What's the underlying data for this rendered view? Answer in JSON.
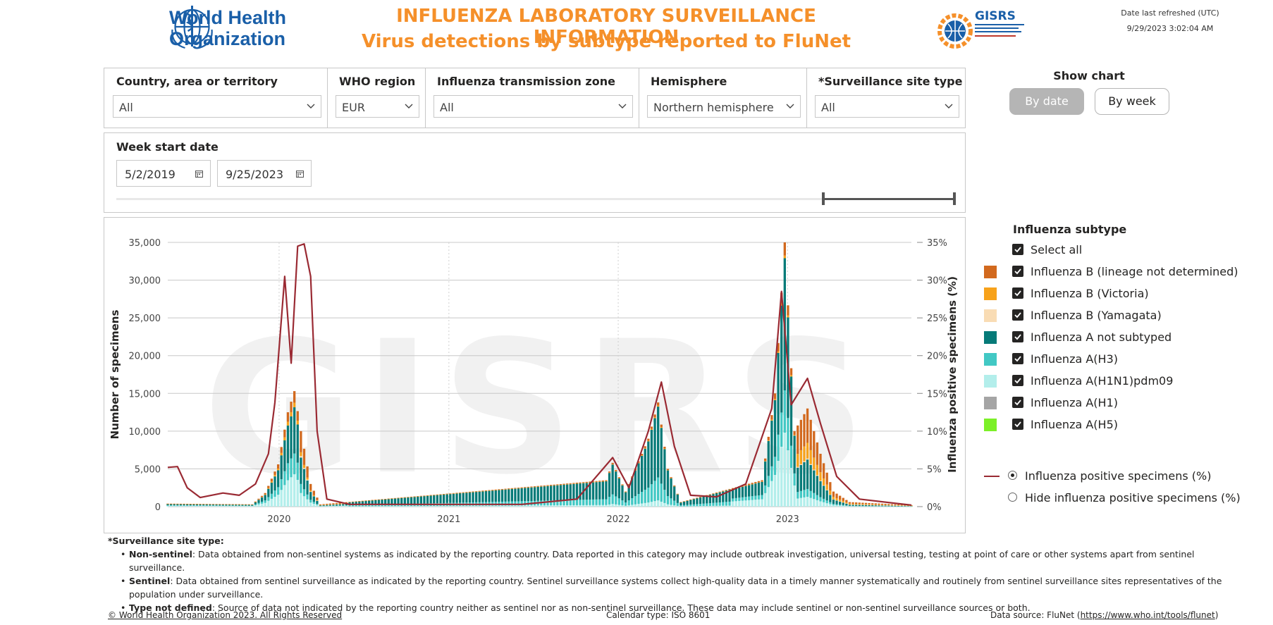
{
  "header": {
    "org_name_line1": "World Health",
    "org_name_line2": "Organization",
    "title": "INFLUENZA LABORATORY SURVEILLANCE INFORMATION",
    "subtitle": "Virus detections by subtype reported to FluNet",
    "gisrs_logo_text": "GISRS",
    "refreshed_label": "Date last refreshed (UTC)",
    "refreshed_value": "9/29/2023 3:02:04 AM"
  },
  "filters": [
    {
      "label": "Country, area or territory",
      "value": "All"
    },
    {
      "label": "WHO region",
      "value": "EUR"
    },
    {
      "label": "Influenza transmission zone",
      "value": "All"
    },
    {
      "label": "Hemisphere",
      "value": "Northern hemisphere"
    },
    {
      "label": "*Surveillance site type",
      "value": "All"
    }
  ],
  "date_filter": {
    "label": "Week start date",
    "start": "5/2/2019",
    "end": "9/25/2023",
    "range_selected": [
      0.878,
      1.0
    ]
  },
  "show_chart": {
    "title": "Show chart",
    "by_date": "By date",
    "by_week": "By week",
    "active": "By date"
  },
  "legend": {
    "title": "Influenza subtype",
    "select_all": "Select all",
    "items": [
      {
        "label": "Influenza B (lineage not determined)",
        "color": "#d2691e",
        "checked": true
      },
      {
        "label": "Influenza B (Victoria)",
        "color": "#f7a21b",
        "checked": true
      },
      {
        "label": "Influenza B (Yamagata)",
        "color": "#f9dcb4",
        "checked": true
      },
      {
        "label": "Influenza A not subtyped",
        "color": "#067a78",
        "checked": true
      },
      {
        "label": "Influenza A(H3)",
        "color": "#42c8c4",
        "checked": true
      },
      {
        "label": "Influenza A(H1N1)pdm09",
        "color": "#b3eeeb",
        "checked": true
      },
      {
        "label": "Influenza A(H1)",
        "color": "#a5a5a5",
        "checked": true
      },
      {
        "label": "Influenza A(H5)",
        "color": "#7cf028",
        "checked": true
      }
    ],
    "line_options": [
      {
        "label": "Influenza positive specimens (%)",
        "selected": true
      },
      {
        "label": "Hide influenza positive specimens (%)",
        "selected": false
      }
    ],
    "line_color": "#9a2a33"
  },
  "chart_data": {
    "type": "bar",
    "watermark": "GISRS",
    "ylabel": "Number of specimens",
    "y2label": "Influenza positive specimens (%)",
    "ylim": [
      0,
      35000
    ],
    "y2lim": [
      0,
      35
    ],
    "yticks": [
      "0",
      "5,000",
      "10,000",
      "15,000",
      "20,000",
      "25,000",
      "30,000",
      "35,000"
    ],
    "y2ticks": [
      "0%",
      "5%",
      "10%",
      "15%",
      "20%",
      "25%",
      "30%",
      "35%"
    ],
    "xticks": [
      "2020",
      "2021",
      "2022",
      "2023"
    ],
    "x_start": "2019-05-06",
    "x_end": "2023-09-25",
    "series": [
      {
        "name": "Influenza A(H1N1)pdm09",
        "color": "#b3eeeb"
      },
      {
        "name": "Influenza A(H3)",
        "color": "#42c8c4"
      },
      {
        "name": "Influenza A not subtyped",
        "color": "#067a78"
      },
      {
        "name": "Influenza B (Yamagata)",
        "color": "#f9dcb4"
      },
      {
        "name": "Influenza B (Victoria)",
        "color": "#f7a21b"
      },
      {
        "name": "Influenza B (lineage not determined)",
        "color": "#d2691e"
      }
    ],
    "bar_totals_weekly": [
      {
        "date": "2019-05-06",
        "total": 400
      },
      {
        "date": "2019-11-04",
        "total": 300
      },
      {
        "date": "2019-12-02",
        "total": 1800
      },
      {
        "date": "2019-12-30",
        "total": 5600
      },
      {
        "date": "2020-01-20",
        "total": 12500
      },
      {
        "date": "2020-02-03",
        "total": 15300
      },
      {
        "date": "2020-02-17",
        "total": 10000
      },
      {
        "date": "2020-03-09",
        "total": 3000
      },
      {
        "date": "2020-03-30",
        "total": 300
      },
      {
        "date": "2021-12-06",
        "total": 3500
      },
      {
        "date": "2021-12-20",
        "total": 5800
      },
      {
        "date": "2022-01-17",
        "total": 2000
      },
      {
        "date": "2022-03-07",
        "total": 9000
      },
      {
        "date": "2022-03-28",
        "total": 13800
      },
      {
        "date": "2022-04-18",
        "total": 5000
      },
      {
        "date": "2022-05-16",
        "total": 600
      },
      {
        "date": "2022-11-07",
        "total": 3500
      },
      {
        "date": "2022-12-05",
        "total": 15000
      },
      {
        "date": "2022-12-26",
        "total": 35000
      },
      {
        "date": "2023-01-16",
        "total": 10000
      },
      {
        "date": "2023-02-13",
        "total": 13000
      },
      {
        "date": "2023-03-13",
        "total": 7000
      },
      {
        "date": "2023-04-10",
        "total": 2000
      },
      {
        "date": "2023-05-15",
        "total": 600
      },
      {
        "date": "2023-09-25",
        "total": 200
      }
    ],
    "positivity_pct": [
      {
        "date": "2019-05-06",
        "value": 5.2
      },
      {
        "date": "2019-05-27",
        "value": 5.3
      },
      {
        "date": "2019-06-17",
        "value": 2.5
      },
      {
        "date": "2019-07-15",
        "value": 1.2
      },
      {
        "date": "2019-09-02",
        "value": 1.8
      },
      {
        "date": "2019-10-07",
        "value": 1.5
      },
      {
        "date": "2019-11-11",
        "value": 3.0
      },
      {
        "date": "2019-12-09",
        "value": 7.0
      },
      {
        "date": "2019-12-23",
        "value": 13.8
      },
      {
        "date": "2020-01-13",
        "value": 30.5
      },
      {
        "date": "2020-01-27",
        "value": 19.0
      },
      {
        "date": "2020-02-10",
        "value": 34.5
      },
      {
        "date": "2020-02-24",
        "value": 34.8
      },
      {
        "date": "2020-03-09",
        "value": 30.5
      },
      {
        "date": "2020-03-23",
        "value": 10.0
      },
      {
        "date": "2020-04-13",
        "value": 1.0
      },
      {
        "date": "2020-06-01",
        "value": 0.3
      },
      {
        "date": "2021-06-07",
        "value": 0.3
      },
      {
        "date": "2021-10-04",
        "value": 1.0
      },
      {
        "date": "2021-12-20",
        "value": 6.5
      },
      {
        "date": "2022-01-24",
        "value": 2.5
      },
      {
        "date": "2022-03-07",
        "value": 10.0
      },
      {
        "date": "2022-04-04",
        "value": 16.5
      },
      {
        "date": "2022-05-02",
        "value": 8.0
      },
      {
        "date": "2022-06-06",
        "value": 1.5
      },
      {
        "date": "2022-08-01",
        "value": 1.3
      },
      {
        "date": "2022-10-03",
        "value": 3.0
      },
      {
        "date": "2022-11-28",
        "value": 13.0
      },
      {
        "date": "2022-12-19",
        "value": 28.5
      },
      {
        "date": "2023-01-09",
        "value": 13.5
      },
      {
        "date": "2023-02-13",
        "value": 17.0
      },
      {
        "date": "2023-03-13",
        "value": 11.0
      },
      {
        "date": "2023-04-17",
        "value": 4.0
      },
      {
        "date": "2023-06-05",
        "value": 1.0
      },
      {
        "date": "2023-09-25",
        "value": 0.2
      }
    ]
  },
  "notes": {
    "heading": "*Surveillance site type:",
    "items": [
      {
        "term": "Non-sentinel",
        "text": ": Data obtained from non-sentinel systems as indicated by the reporting country. Data reported in this category may include outbreak investigation, universal testing, testing at point of care or other systems apart from sentinel surveillance."
      },
      {
        "term": "Sentinel",
        "text": ": Data obtained from sentinel surveillance as indicated by the reporting country. Sentinel surveillance systems collect high-quality data in a timely manner systematically and routinely from sentinel surveillance sites representatives of the population under surveillance."
      },
      {
        "term": "Type not defined",
        "text": ": Source of data not indicated by the reporting country neither as sentinel nor as non-sentinel surveillance. These data may include sentinel or non-sentinel surveillance sources or both."
      }
    ]
  },
  "footer": {
    "copyright": "© World Health Organization 2023. All Rights Reserved",
    "calendar": "Calendar type: ISO 8601",
    "source_prefix": "Data source: FluNet (",
    "source_link": "https://www.who.int/tools/flunet",
    "source_suffix": ")"
  }
}
